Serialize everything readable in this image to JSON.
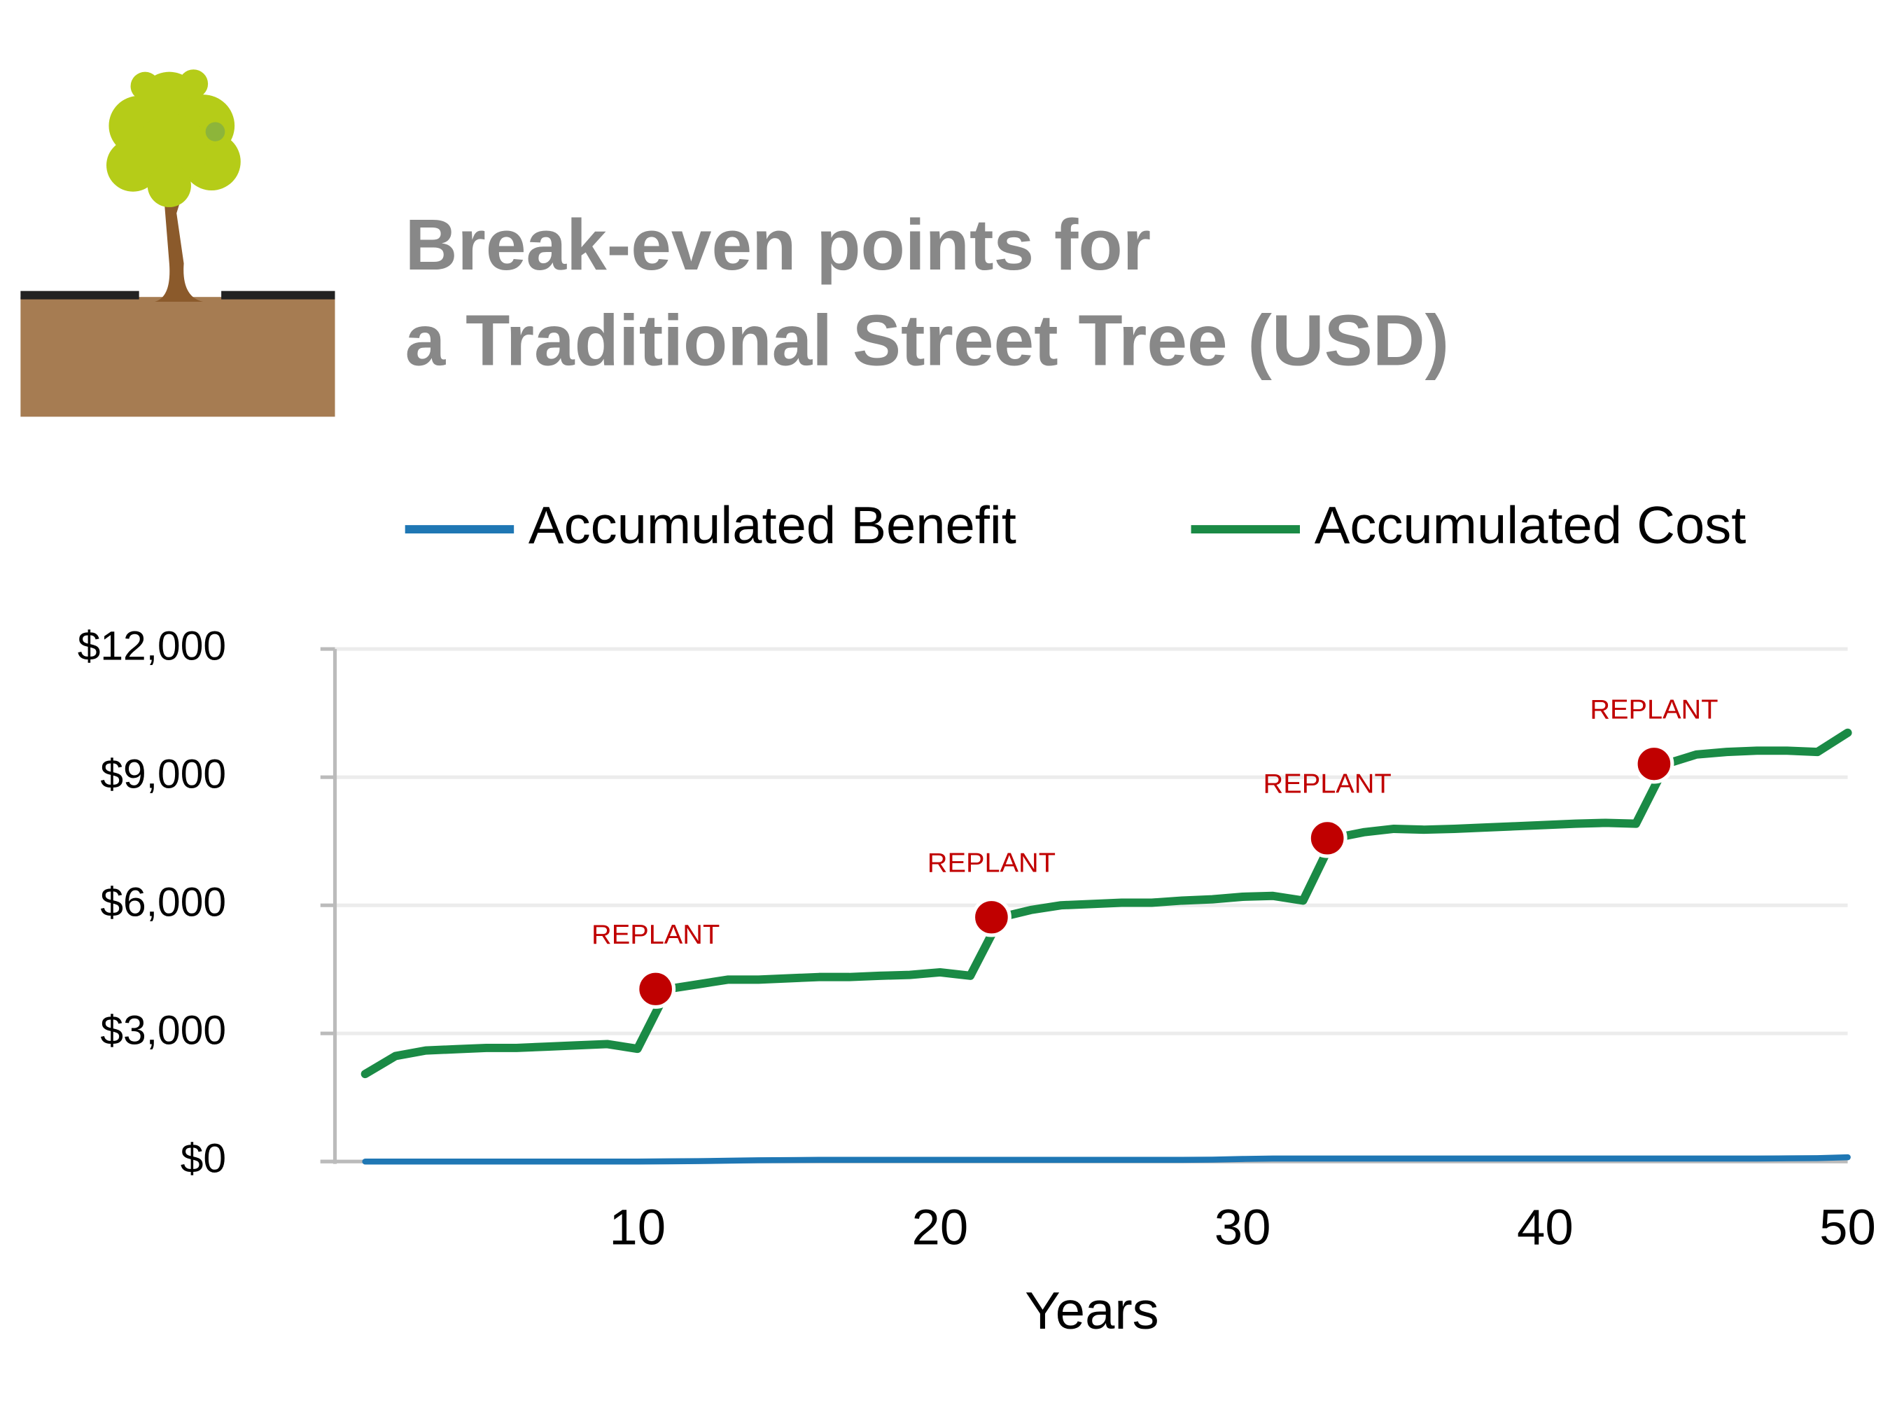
{
  "chart_data": {
    "type": "line",
    "title": [
      "Break-even points for",
      "a Traditional Street Tree (USD)"
    ],
    "x_label": "Years",
    "x": [
      1,
      2,
      3,
      4,
      5,
      6,
      7,
      8,
      9,
      10,
      11,
      12,
      13,
      14,
      15,
      16,
      17,
      18,
      19,
      20,
      21,
      22,
      23,
      24,
      25,
      26,
      27,
      28,
      29,
      30,
      31,
      32,
      33,
      34,
      35,
      36,
      37,
      38,
      39,
      40,
      41,
      42,
      43,
      44,
      45,
      46,
      47,
      48,
      49,
      50
    ],
    "xlim": [
      0,
      50
    ],
    "xticks": [
      10,
      20,
      30,
      40,
      50
    ],
    "ylim": [
      0,
      12000
    ],
    "yticks": [
      {
        "value": 0,
        "label": "$0"
      },
      {
        "value": 3000,
        "label": "$3,000"
      },
      {
        "value": 6000,
        "label": "$6,000"
      },
      {
        "value": 9000,
        "label": "$9,000"
      },
      {
        "value": 12000,
        "label": "$12,000"
      }
    ],
    "grid": true,
    "legend": "top",
    "series": [
      {
        "name": "Accumulated Benefit",
        "color": "#1f77b4",
        "values": [
          0,
          0,
          0,
          0,
          0,
          0,
          0,
          0,
          0,
          0,
          5,
          10,
          20,
          30,
          35,
          40,
          40,
          40,
          40,
          40,
          40,
          40,
          40,
          40,
          40,
          40,
          40,
          40,
          45,
          60,
          70,
          70,
          70,
          70,
          70,
          70,
          70,
          70,
          70,
          70,
          70,
          70,
          70,
          70,
          70,
          70,
          70,
          75,
          80,
          100
        ]
      },
      {
        "name": "Accumulated Cost",
        "color": "#1a8a45",
        "values": [
          2050,
          2470,
          2600,
          2630,
          2660,
          2660,
          2690,
          2720,
          2750,
          2640,
          4040,
          4150,
          4260,
          4260,
          4290,
          4320,
          4320,
          4350,
          4370,
          4430,
          4350,
          5720,
          5890,
          6000,
          6030,
          6060,
          6060,
          6110,
          6140,
          6200,
          6220,
          6110,
          7570,
          7710,
          7790,
          7770,
          7790,
          7820,
          7850,
          7880,
          7910,
          7930,
          7910,
          9310,
          9530,
          9590,
          9620,
          9620,
          9590,
          10040
        ]
      }
    ],
    "annotations": [
      {
        "text": "REPLANT",
        "x": 10.6,
        "y": 4040
      },
      {
        "text": "REPLANT",
        "x": 21.7,
        "y": 5720
      },
      {
        "text": "REPLANT",
        "x": 32.8,
        "y": 7570
      },
      {
        "text": "REPLANT",
        "x": 43.6,
        "y": 9310
      }
    ],
    "annotation_color": "#c00000"
  }
}
